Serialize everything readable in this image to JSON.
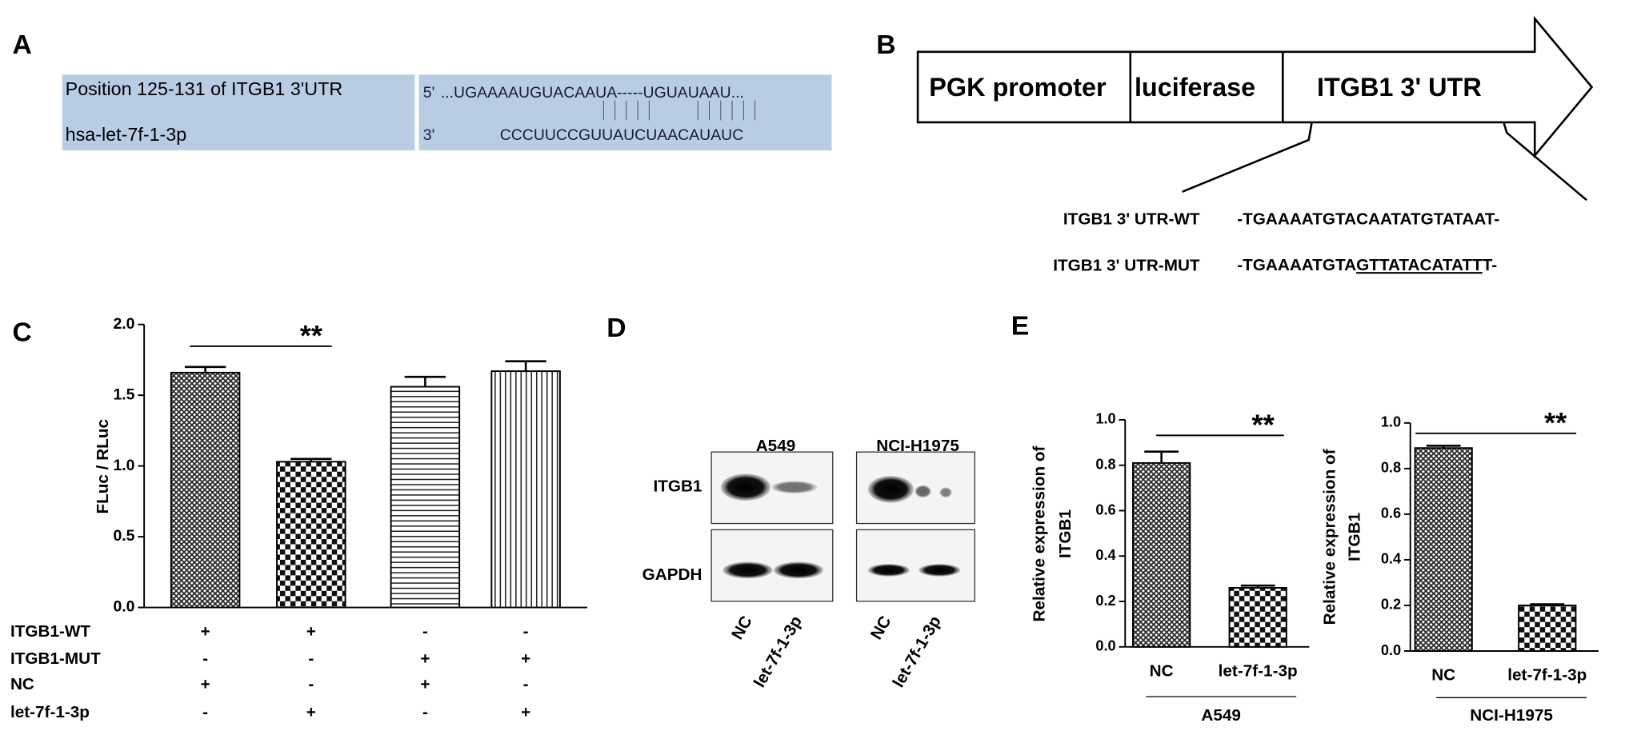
{
  "panel_a": {
    "label": "A",
    "target_label": "Position 125-131 of ITGB1 3'UTR",
    "target_prefix": "5'",
    "target_seq": "...UGAAAAUGUACAAUA-----UGUAUAAU...",
    "mirna_label": "hsa-let-7f-1-3p",
    "mirna_prefix": "3'",
    "mirna_seq": "CCCUUCCGUUAUCUAACAUAUC"
  },
  "panel_b": {
    "label": "B",
    "segments": [
      "PGK promoter",
      "luciferase",
      "ITGB1  3' UTR"
    ],
    "wt_name": "ITGB1  3' UTR-WT",
    "wt_seq": "-TGAAAATGTACAATATGTATAAT-",
    "mut_name": "ITGB1  3' UTR-MUT",
    "mut_seq_start": "-TGAAAATGTA",
    "mut_seq_changed": "GTTATACATATT",
    "mut_seq_end": "T-"
  },
  "panel_d": {
    "label": "D",
    "cell_lines": [
      "A549",
      "NCI-H1975"
    ],
    "proteins": [
      "ITGB1",
      "GAPDH"
    ],
    "lanes": [
      "NC",
      "let-7f-1-3p",
      "NC",
      "let-7f-1-3p"
    ]
  },
  "chart_data": [
    {
      "type": "bar",
      "panel_label": "C",
      "ylabel": [
        "FLuc / RLuc"
      ],
      "categories": [
        null,
        null,
        null,
        null
      ],
      "values": [
        1.66,
        1.03,
        1.56,
        1.67
      ],
      "errors": [
        0.04,
        0.02,
        0.07,
        0.07
      ],
      "ylim": [
        0,
        2
      ],
      "yticks": [
        {
          "value": 0,
          "label": "0.0"
        },
        0.5,
        {
          "value": 1,
          "label": "1.0"
        },
        1.5,
        {
          "value": 2,
          "label": "2.0"
        }
      ],
      "annotation": "**",
      "conditions": [
        {
          "name": "ITGB1-WT",
          "marks": [
            "+",
            "+",
            "-",
            "-"
          ]
        },
        {
          "name": "ITGB1-MUT",
          "marks": [
            "-",
            "-",
            "+",
            "+"
          ]
        },
        {
          "name": "NC",
          "marks": [
            "+",
            "-",
            "+",
            "-"
          ]
        },
        {
          "name": "let-7f-1-3p",
          "marks": [
            "-",
            "+",
            "-",
            "+"
          ]
        }
      ]
    },
    {
      "type": "bar",
      "panel_label": "E",
      "ylabel": [
        "Relative expression of",
        "ITGB1"
      ],
      "categories": [
        "NC",
        "let-7f-1-3p"
      ],
      "values": [
        0.81,
        0.26
      ],
      "errors": [
        0.05,
        0.01
      ],
      "ylim": [
        0,
        1
      ],
      "yticks": [
        {
          "value": 0,
          "label": "0.0"
        },
        0.2,
        0.4,
        0.6,
        0.8,
        {
          "value": 1,
          "label": "1.0"
        }
      ],
      "annotation": "**",
      "group": "A549"
    },
    {
      "type": "bar",
      "ylabel": [
        "Relative expression of",
        "ITGB1"
      ],
      "categories": [
        "NC",
        "let-7f-1-3p"
      ],
      "values": [
        0.89,
        0.2
      ],
      "errors": [
        0.01,
        0.005
      ],
      "ylim": [
        0,
        1
      ],
      "yticks": [
        {
          "value": 0,
          "label": "0.0"
        },
        0.2,
        0.4,
        0.6,
        0.8,
        {
          "value": 1,
          "label": "1.0"
        }
      ],
      "annotation": "**",
      "group": "NCI-H1975"
    }
  ]
}
